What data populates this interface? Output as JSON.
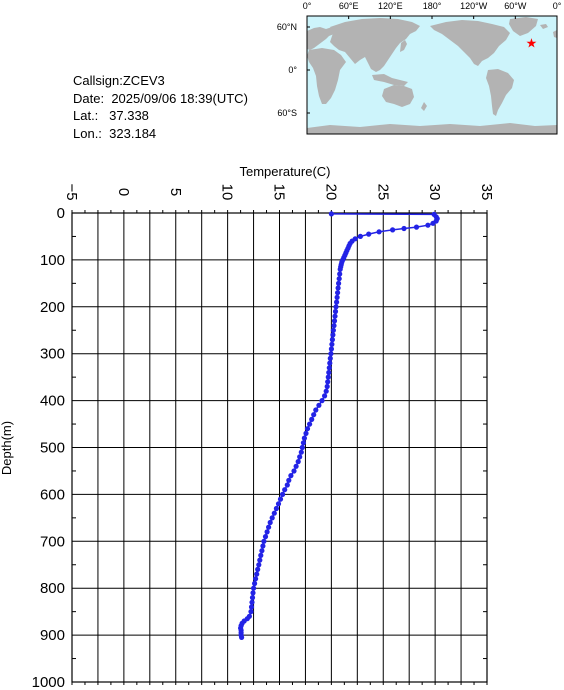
{
  "info": {
    "callsign_label": "Callsign:",
    "callsign": "ZCEV3",
    "date_label": "Date:",
    "date": "2025/09/06 18:39(UTC)",
    "lat_label": "Lat.:",
    "lat": "37.338",
    "lon_label": "Lon.:",
    "lon": "323.184"
  },
  "map": {
    "lon_labels": [
      "0°",
      "60°E",
      "120°E",
      "180°",
      "120°W",
      "60°W",
      "0°"
    ],
    "lat_labels": [
      "60°N",
      "0°",
      "60°S"
    ],
    "ocean_color": "#cdf4fb",
    "land_color": "#b3b3b3",
    "marker_color": "#ff0000",
    "marker": {
      "lat": 37.338,
      "lon": 323.184
    }
  },
  "chart_data": {
    "type": "scatter",
    "xlabel": "Temperature(C)",
    "ylabel": "Depth(m)",
    "xlim": [
      -5,
      35
    ],
    "ylim": [
      1000,
      0
    ],
    "x_ticks": [
      -5,
      0,
      5,
      10,
      15,
      20,
      25,
      30,
      35
    ],
    "y_ticks": [
      0,
      100,
      200,
      300,
      400,
      500,
      600,
      700,
      800,
      900,
      1000
    ],
    "grid": true,
    "color": "#2323e6",
    "series": [
      {
        "points": [
          [
            20.0,
            2
          ],
          [
            29.9,
            3
          ],
          [
            30.1,
            8
          ],
          [
            30.2,
            12
          ],
          [
            30.1,
            17
          ],
          [
            29.8,
            22
          ],
          [
            29.3,
            26
          ],
          [
            28.2,
            30
          ],
          [
            27.0,
            33
          ],
          [
            25.9,
            36
          ],
          [
            24.6,
            40
          ],
          [
            23.6,
            45
          ],
          [
            22.8,
            50
          ],
          [
            22.3,
            55
          ],
          [
            22.0,
            60
          ],
          [
            21.8,
            65
          ],
          [
            21.7,
            70
          ],
          [
            21.6,
            75
          ],
          [
            21.5,
            80
          ],
          [
            21.4,
            85
          ],
          [
            21.3,
            90
          ],
          [
            21.2,
            95
          ],
          [
            21.1,
            100
          ],
          [
            21.0,
            105
          ],
          [
            20.95,
            110
          ],
          [
            20.9,
            115
          ],
          [
            20.85,
            120
          ],
          [
            20.8,
            130
          ],
          [
            20.75,
            140
          ],
          [
            20.7,
            150
          ],
          [
            20.65,
            160
          ],
          [
            20.6,
            170
          ],
          [
            20.55,
            180
          ],
          [
            20.5,
            190
          ],
          [
            20.45,
            200
          ],
          [
            20.4,
            210
          ],
          [
            20.35,
            220
          ],
          [
            20.3,
            230
          ],
          [
            20.25,
            240
          ],
          [
            20.2,
            250
          ],
          [
            20.15,
            260
          ],
          [
            20.1,
            270
          ],
          [
            20.05,
            280
          ],
          [
            20.0,
            290
          ],
          [
            19.95,
            300
          ],
          [
            19.9,
            310
          ],
          [
            19.85,
            320
          ],
          [
            19.8,
            330
          ],
          [
            19.75,
            340
          ],
          [
            19.7,
            350
          ],
          [
            19.65,
            360
          ],
          [
            19.6,
            370
          ],
          [
            19.5,
            380
          ],
          [
            19.35,
            390
          ],
          [
            19.1,
            400
          ],
          [
            18.8,
            410
          ],
          [
            18.5,
            420
          ],
          [
            18.3,
            430
          ],
          [
            18.1,
            440
          ],
          [
            17.9,
            450
          ],
          [
            17.7,
            460
          ],
          [
            17.55,
            470
          ],
          [
            17.4,
            480
          ],
          [
            17.3,
            490
          ],
          [
            17.2,
            500
          ],
          [
            17.1,
            510
          ],
          [
            16.95,
            520
          ],
          [
            16.8,
            530
          ],
          [
            16.6,
            540
          ],
          [
            16.4,
            550
          ],
          [
            16.1,
            560
          ],
          [
            15.9,
            570
          ],
          [
            15.75,
            580
          ],
          [
            15.5,
            590
          ],
          [
            15.3,
            600
          ],
          [
            15.1,
            610
          ],
          [
            14.9,
            620
          ],
          [
            14.7,
            630
          ],
          [
            14.5,
            640
          ],
          [
            14.3,
            650
          ],
          [
            14.1,
            660
          ],
          [
            13.95,
            670
          ],
          [
            13.8,
            680
          ],
          [
            13.65,
            690
          ],
          [
            13.5,
            700
          ],
          [
            13.4,
            710
          ],
          [
            13.3,
            720
          ],
          [
            13.2,
            730
          ],
          [
            13.1,
            740
          ],
          [
            13.0,
            750
          ],
          [
            12.9,
            760
          ],
          [
            12.8,
            770
          ],
          [
            12.7,
            780
          ],
          [
            12.6,
            790
          ],
          [
            12.5,
            800
          ],
          [
            12.45,
            810
          ],
          [
            12.4,
            820
          ],
          [
            12.35,
            830
          ],
          [
            12.3,
            840
          ],
          [
            12.25,
            850
          ],
          [
            12.1,
            860
          ],
          [
            11.9,
            865
          ],
          [
            11.6,
            870
          ],
          [
            11.4,
            875
          ],
          [
            11.3,
            880
          ],
          [
            11.25,
            885
          ],
          [
            11.3,
            890
          ],
          [
            11.3,
            895
          ],
          [
            11.3,
            900
          ],
          [
            11.35,
            905
          ]
        ]
      }
    ]
  }
}
